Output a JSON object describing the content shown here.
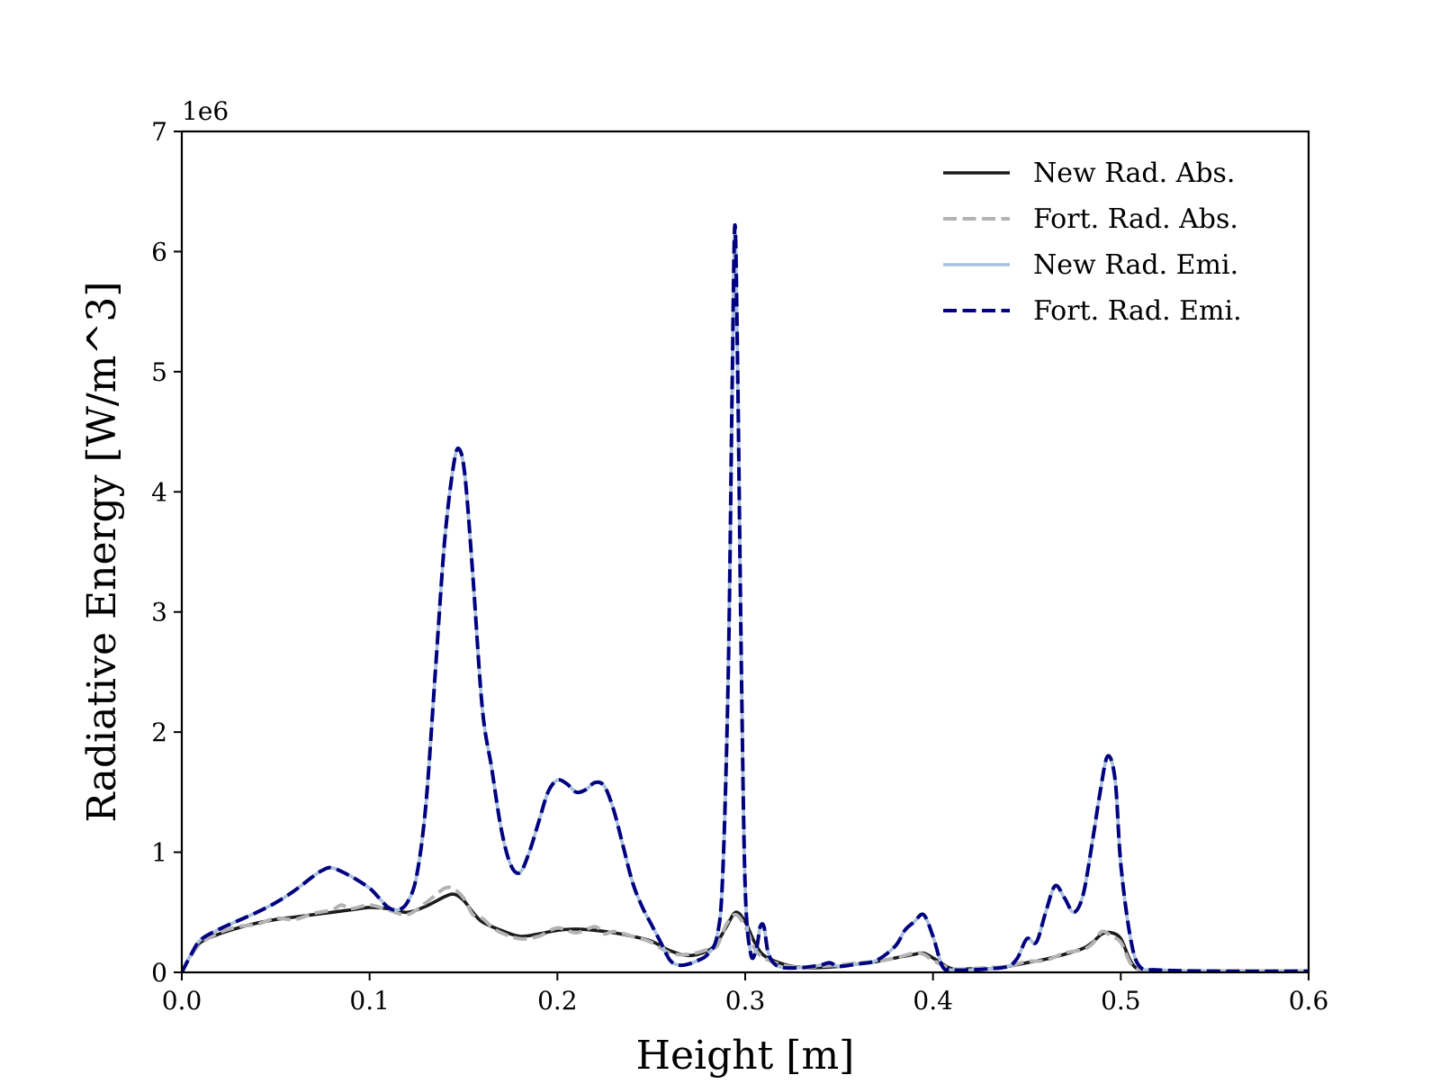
{
  "chart_data": {
    "type": "line",
    "title": "",
    "xlabel": "Height [m]",
    "ylabel": "Radiative Energy [W/m^3]",
    "y_offset_label": "1e6",
    "xlim": [
      0.0,
      0.6
    ],
    "ylim": [
      0,
      7
    ],
    "xticks": [
      0.0,
      0.1,
      0.2,
      0.3,
      0.4,
      0.5,
      0.6
    ],
    "xtick_labels": [
      "0.0",
      "0.1",
      "0.2",
      "0.3",
      "0.4",
      "0.5",
      "0.6"
    ],
    "yticks": [
      0,
      1,
      2,
      3,
      4,
      5,
      6,
      7
    ],
    "ytick_labels": [
      "0",
      "1",
      "2",
      "3",
      "4",
      "5",
      "6",
      "7"
    ],
    "grid": false,
    "legend_position": "top-right",
    "series": [
      {
        "name": "New Rad. Abs.",
        "color": "#1a1a1a",
        "style": "solid",
        "x": [
          0.0,
          0.005,
          0.01,
          0.02,
          0.03,
          0.04,
          0.05,
          0.06,
          0.07,
          0.08,
          0.09,
          0.1,
          0.11,
          0.12,
          0.13,
          0.14,
          0.145,
          0.15,
          0.155,
          0.16,
          0.17,
          0.18,
          0.19,
          0.2,
          0.21,
          0.22,
          0.23,
          0.24,
          0.25,
          0.26,
          0.27,
          0.28,
          0.285,
          0.29,
          0.295,
          0.3,
          0.305,
          0.31,
          0.32,
          0.33,
          0.34,
          0.35,
          0.36,
          0.37,
          0.38,
          0.39,
          0.395,
          0.4,
          0.41,
          0.42,
          0.43,
          0.44,
          0.45,
          0.46,
          0.47,
          0.48,
          0.485,
          0.49,
          0.495,
          0.5,
          0.505,
          0.51,
          0.52,
          0.55,
          0.6
        ],
        "values": [
          0.0,
          0.15,
          0.25,
          0.32,
          0.37,
          0.41,
          0.44,
          0.46,
          0.48,
          0.5,
          0.52,
          0.54,
          0.53,
          0.5,
          0.55,
          0.63,
          0.65,
          0.6,
          0.5,
          0.42,
          0.35,
          0.3,
          0.32,
          0.35,
          0.36,
          0.35,
          0.33,
          0.3,
          0.26,
          0.18,
          0.14,
          0.18,
          0.25,
          0.38,
          0.5,
          0.42,
          0.25,
          0.14,
          0.07,
          0.04,
          0.04,
          0.05,
          0.07,
          0.09,
          0.12,
          0.15,
          0.16,
          0.12,
          0.03,
          0.03,
          0.03,
          0.05,
          0.08,
          0.11,
          0.15,
          0.2,
          0.25,
          0.32,
          0.33,
          0.28,
          0.1,
          0.02,
          0.01,
          0.01,
          0.01
        ]
      },
      {
        "name": "Fort. Rad. Abs.",
        "color": "#b3b3b3",
        "style": "dashed",
        "x": [
          0.0,
          0.005,
          0.01,
          0.02,
          0.03,
          0.04,
          0.05,
          0.06,
          0.07,
          0.08,
          0.085,
          0.09,
          0.1,
          0.11,
          0.12,
          0.13,
          0.14,
          0.145,
          0.15,
          0.155,
          0.16,
          0.165,
          0.17,
          0.18,
          0.19,
          0.2,
          0.21,
          0.22,
          0.225,
          0.23,
          0.24,
          0.25,
          0.26,
          0.27,
          0.28,
          0.285,
          0.29,
          0.295,
          0.3,
          0.305,
          0.31,
          0.32,
          0.33,
          0.34,
          0.35,
          0.36,
          0.37,
          0.38,
          0.39,
          0.395,
          0.4,
          0.41,
          0.42,
          0.43,
          0.44,
          0.45,
          0.46,
          0.47,
          0.48,
          0.485,
          0.49,
          0.495,
          0.5,
          0.505,
          0.51,
          0.52,
          0.55,
          0.6
        ],
        "values": [
          0.0,
          0.14,
          0.24,
          0.33,
          0.38,
          0.4,
          0.45,
          0.44,
          0.49,
          0.52,
          0.56,
          0.53,
          0.56,
          0.52,
          0.48,
          0.58,
          0.7,
          0.69,
          0.62,
          0.48,
          0.45,
          0.38,
          0.33,
          0.28,
          0.3,
          0.37,
          0.33,
          0.38,
          0.32,
          0.34,
          0.3,
          0.25,
          0.16,
          0.15,
          0.19,
          0.22,
          0.4,
          0.48,
          0.38,
          0.2,
          0.12,
          0.06,
          0.04,
          0.05,
          0.06,
          0.08,
          0.09,
          0.12,
          0.16,
          0.15,
          0.1,
          0.03,
          0.03,
          0.04,
          0.05,
          0.09,
          0.1,
          0.16,
          0.19,
          0.24,
          0.34,
          0.3,
          0.25,
          0.08,
          0.02,
          0.01,
          0.01,
          0.01
        ]
      },
      {
        "name": "New Rad. Emi.",
        "color": "#a8c1dc",
        "style": "solid",
        "x": [
          0.0,
          0.005,
          0.01,
          0.02,
          0.03,
          0.04,
          0.05,
          0.06,
          0.07,
          0.075,
          0.08,
          0.09,
          0.1,
          0.105,
          0.11,
          0.115,
          0.12,
          0.125,
          0.13,
          0.135,
          0.14,
          0.145,
          0.148,
          0.151,
          0.155,
          0.16,
          0.165,
          0.17,
          0.175,
          0.18,
          0.185,
          0.19,
          0.195,
          0.2,
          0.205,
          0.21,
          0.215,
          0.22,
          0.225,
          0.23,
          0.235,
          0.24,
          0.245,
          0.25,
          0.255,
          0.26,
          0.265,
          0.27,
          0.275,
          0.28,
          0.285,
          0.288,
          0.291,
          0.293,
          0.2945,
          0.296,
          0.298,
          0.3,
          0.303,
          0.306,
          0.308,
          0.31,
          0.312,
          0.315,
          0.32,
          0.33,
          0.34,
          0.345,
          0.35,
          0.36,
          0.37,
          0.38,
          0.385,
          0.39,
          0.395,
          0.4,
          0.405,
          0.41,
          0.42,
          0.43,
          0.44,
          0.445,
          0.45,
          0.455,
          0.46,
          0.465,
          0.47,
          0.475,
          0.48,
          0.485,
          0.489,
          0.493,
          0.497,
          0.5,
          0.505,
          0.51,
          0.52,
          0.55,
          0.6
        ],
        "values": [
          0.0,
          0.15,
          0.27,
          0.36,
          0.43,
          0.5,
          0.58,
          0.68,
          0.8,
          0.85,
          0.87,
          0.8,
          0.7,
          0.62,
          0.54,
          0.52,
          0.58,
          0.8,
          1.4,
          2.5,
          3.6,
          4.25,
          4.35,
          4.1,
          3.3,
          2.2,
          1.7,
          1.2,
          0.9,
          0.83,
          1.0,
          1.25,
          1.5,
          1.6,
          1.57,
          1.5,
          1.52,
          1.58,
          1.55,
          1.35,
          1.05,
          0.75,
          0.55,
          0.4,
          0.25,
          0.1,
          0.06,
          0.07,
          0.1,
          0.15,
          0.3,
          0.8,
          2.5,
          4.8,
          6.2,
          5.0,
          2.5,
          0.7,
          0.15,
          0.2,
          0.38,
          0.38,
          0.18,
          0.08,
          0.04,
          0.04,
          0.06,
          0.08,
          0.05,
          0.07,
          0.1,
          0.22,
          0.35,
          0.42,
          0.48,
          0.3,
          0.05,
          0.02,
          0.02,
          0.03,
          0.05,
          0.12,
          0.28,
          0.25,
          0.5,
          0.72,
          0.62,
          0.5,
          0.65,
          1.1,
          1.5,
          1.8,
          1.6,
          0.9,
          0.3,
          0.05,
          0.02,
          0.01,
          0.01
        ]
      },
      {
        "name": "Fort. Rad. Emi.",
        "color": "#000080",
        "style": "dashed",
        "x": [
          0.0,
          0.005,
          0.01,
          0.02,
          0.03,
          0.04,
          0.05,
          0.06,
          0.07,
          0.075,
          0.08,
          0.09,
          0.1,
          0.105,
          0.11,
          0.115,
          0.12,
          0.125,
          0.13,
          0.135,
          0.14,
          0.145,
          0.148,
          0.151,
          0.155,
          0.16,
          0.165,
          0.17,
          0.175,
          0.18,
          0.185,
          0.19,
          0.195,
          0.2,
          0.205,
          0.21,
          0.215,
          0.22,
          0.225,
          0.23,
          0.235,
          0.24,
          0.245,
          0.25,
          0.255,
          0.26,
          0.265,
          0.27,
          0.275,
          0.28,
          0.285,
          0.288,
          0.291,
          0.293,
          0.2945,
          0.296,
          0.298,
          0.3,
          0.303,
          0.306,
          0.308,
          0.31,
          0.312,
          0.315,
          0.32,
          0.33,
          0.34,
          0.345,
          0.35,
          0.36,
          0.37,
          0.38,
          0.385,
          0.39,
          0.395,
          0.4,
          0.405,
          0.41,
          0.42,
          0.43,
          0.44,
          0.445,
          0.45,
          0.455,
          0.46,
          0.465,
          0.47,
          0.475,
          0.48,
          0.485,
          0.489,
          0.493,
          0.497,
          0.5,
          0.505,
          0.51,
          0.52,
          0.55,
          0.6
        ],
        "values": [
          0.0,
          0.15,
          0.27,
          0.36,
          0.43,
          0.5,
          0.58,
          0.68,
          0.8,
          0.85,
          0.87,
          0.8,
          0.7,
          0.62,
          0.54,
          0.52,
          0.58,
          0.8,
          1.4,
          2.5,
          3.6,
          4.25,
          4.35,
          4.1,
          3.3,
          2.2,
          1.7,
          1.2,
          0.9,
          0.83,
          1.0,
          1.25,
          1.5,
          1.6,
          1.57,
          1.5,
          1.52,
          1.58,
          1.55,
          1.35,
          1.05,
          0.75,
          0.55,
          0.4,
          0.25,
          0.1,
          0.06,
          0.07,
          0.1,
          0.15,
          0.3,
          0.8,
          2.5,
          4.8,
          6.22,
          5.0,
          2.5,
          0.7,
          0.15,
          0.2,
          0.38,
          0.38,
          0.18,
          0.08,
          0.04,
          0.04,
          0.06,
          0.08,
          0.05,
          0.07,
          0.1,
          0.22,
          0.35,
          0.42,
          0.48,
          0.3,
          0.05,
          0.02,
          0.02,
          0.03,
          0.05,
          0.12,
          0.28,
          0.25,
          0.5,
          0.72,
          0.62,
          0.5,
          0.65,
          1.1,
          1.5,
          1.8,
          1.6,
          0.9,
          0.3,
          0.05,
          0.02,
          0.01,
          0.01
        ]
      }
    ]
  }
}
